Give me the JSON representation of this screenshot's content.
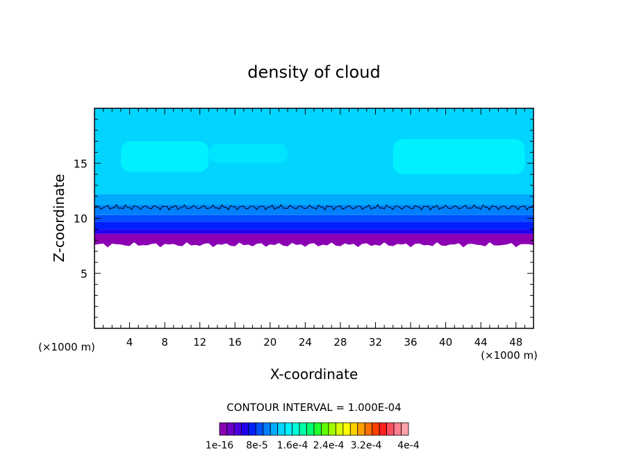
{
  "chart_data": {
    "type": "heatmap",
    "title": "density of cloud",
    "xlabel": "X-coordinate",
    "ylabel": "Z-coordinate",
    "x_unit": "(×1000 m)",
    "z_unit": "(×1000 m)",
    "xlim": [
      0,
      50
    ],
    "ylim": [
      0,
      20
    ],
    "x_ticks": [
      4,
      8,
      12,
      16,
      20,
      24,
      28,
      32,
      36,
      40,
      44,
      48
    ],
    "y_ticks": [
      5,
      10,
      15
    ],
    "contour_interval_text": "CONTOUR INTERVAL = 1.000E-04",
    "contour_line_z": 11,
    "cloud_base_z": 7.8,
    "colorbar": {
      "labels": [
        "1e-16",
        "8e-5",
        "1.6e-4",
        "2.4e-4",
        "3.2e-4",
        "4e-4"
      ],
      "colors": [
        "#8c00b4",
        "#6a00c8",
        "#4c00dc",
        "#2000f0",
        "#0020ff",
        "#0050ff",
        "#0080ff",
        "#00aaff",
        "#00d4ff",
        "#00f0ff",
        "#00ffd8",
        "#00ffa8",
        "#00ff70",
        "#20ff30",
        "#60ff00",
        "#a0ff00",
        "#d8ff00",
        "#ffff00",
        "#ffd000",
        "#ffa000",
        "#ff7000",
        "#ff4000",
        "#ff2020",
        "#ff5060",
        "#ff8090",
        "#ffa0a8"
      ]
    },
    "layers": [
      {
        "z_from": 7.8,
        "z_to": 8.6,
        "color": "#8c00b4"
      },
      {
        "z_from": 8.6,
        "z_to": 9.0,
        "color": "#2000f0"
      },
      {
        "z_from": 9.0,
        "z_to": 9.7,
        "color": "#0020ff"
      },
      {
        "z_from": 9.7,
        "z_to": 10.3,
        "color": "#0050ff"
      },
      {
        "z_from": 10.3,
        "z_to": 11.2,
        "color": "#0080ff"
      },
      {
        "z_from": 11.2,
        "z_to": 12.2,
        "color": "#00aaff"
      },
      {
        "z_from": 12.2,
        "z_to": 15.8,
        "color": "#00d4ff"
      },
      {
        "z_from": 15.8,
        "z_to": 20.0,
        "color": "#00d4ff"
      }
    ],
    "high_density_patches": [
      {
        "x_from": 3,
        "x_to": 13,
        "z_from": 14.2,
        "z_to": 17.0,
        "color": "#00f0ff"
      },
      {
        "x_from": 34,
        "x_to": 49,
        "z_from": 14.0,
        "z_to": 17.2,
        "color": "#00f0ff"
      },
      {
        "x_from": 13,
        "x_to": 22,
        "z_from": 15.0,
        "z_to": 16.8,
        "color": "#00e4ff"
      }
    ]
  }
}
